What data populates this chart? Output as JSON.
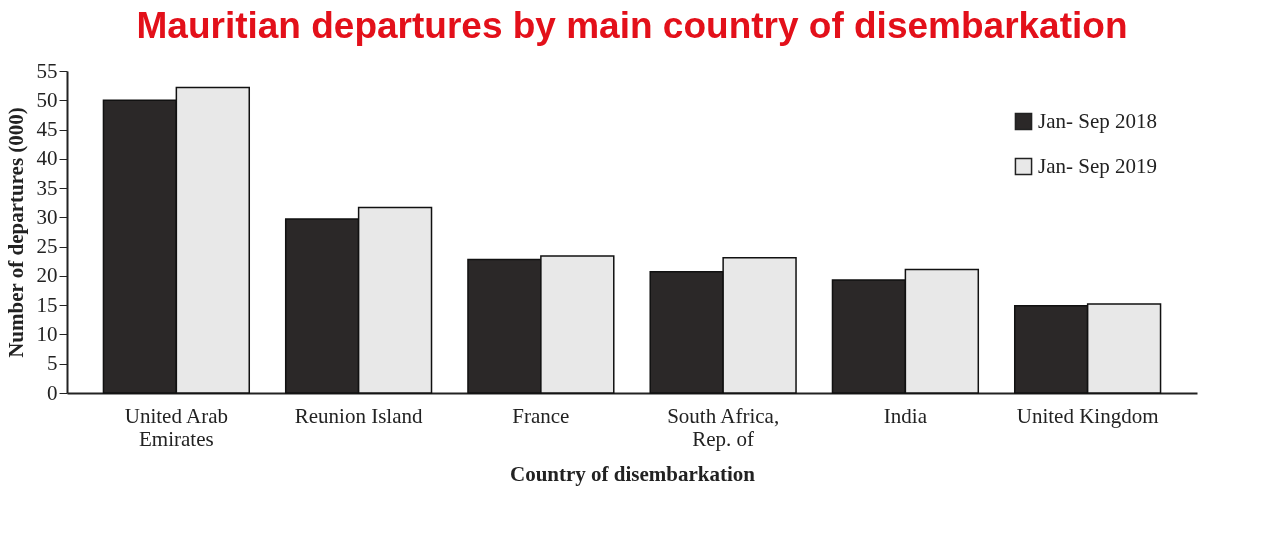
{
  "chart_data": {
    "type": "bar",
    "title": "Mauritian departures by main country of disembarkation",
    "categories": [
      "United Arab Emirates",
      "Reunion Island",
      "France",
      "South Africa, Rep. of",
      "India",
      "United Kingdom"
    ],
    "series": [
      {
        "name": "Jan- Sep 2018",
        "color": "#2b2828",
        "values": [
          50.0,
          29.7,
          22.8,
          20.7,
          19.3,
          14.9
        ]
      },
      {
        "name": "Jan- Sep 2019",
        "color": "#e8e8e8",
        "values": [
          52.2,
          31.7,
          23.4,
          23.1,
          21.1,
          15.2
        ]
      }
    ],
    "xlabel": "Country of disembarkation",
    "ylabel": "Number  of departures  (000)",
    "ylim": [
      0,
      55
    ],
    "yticks": [
      0,
      5,
      10,
      15,
      20,
      25,
      30,
      35,
      40,
      45,
      50,
      55
    ],
    "grid": false,
    "legend": "top right"
  }
}
